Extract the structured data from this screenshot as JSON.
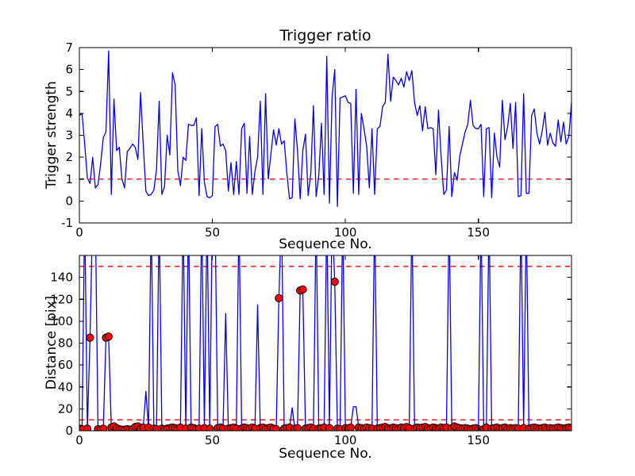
{
  "figure_title": "Trigger ratio",
  "chart_data": [
    {
      "type": "line",
      "title": "Trigger ratio",
      "xlabel": "Sequence No.",
      "ylabel": "Trigger strength",
      "xlim": [
        0,
        185
      ],
      "ylim": [
        -1,
        7
      ],
      "xticks": [
        0,
        50,
        100,
        150
      ],
      "yticks": [
        -1,
        0,
        1,
        2,
        3,
        4,
        5,
        6,
        7
      ],
      "grid": false,
      "legend": "none",
      "line_color": "#0000ff",
      "threshold_color": "#ff0000",
      "thresholds": [
        1
      ],
      "values": [
        3.9,
        4.0,
        2.6,
        1.05,
        0.8,
        2.0,
        0.6,
        0.75,
        1.7,
        2.9,
        3.15,
        6.85,
        0.3,
        4.65,
        2.3,
        2.45,
        1.0,
        0.6,
        2.25,
        2.4,
        2.6,
        2.45,
        1.9,
        4.95,
        2.6,
        0.45,
        0.25,
        0.3,
        0.5,
        1.45,
        4.55,
        0.3,
        0.65,
        3.0,
        2.1,
        5.85,
        5.3,
        1.4,
        0.7,
        2.0,
        1.85,
        3.5,
        3.45,
        3.45,
        3.8,
        0.25,
        3.3,
        0.85,
        0.2,
        0.15,
        0.25,
        3.4,
        3.5,
        2.5,
        2.6,
        2.3,
        0.45,
        1.75,
        0.3,
        1.8,
        0.3,
        3.3,
        3.55,
        0.35,
        2.95,
        0.3,
        1.35,
        2.0,
        4.55,
        0.3,
        4.9,
        1.0,
        2.15,
        3.25,
        2.55,
        3.3,
        2.6,
        2.75,
        1.25,
        0.1,
        0.15,
        3.75,
        2.3,
        0.1,
        2.3,
        3.05,
        0.25,
        1.25,
        4.35,
        0.2,
        1.15,
        3.55,
        0.3,
        6.6,
        -0.1,
        4.75,
        6.0,
        -0.25,
        4.7,
        4.75,
        4.8,
        4.5,
        4.45,
        0.35,
        5.1,
        0.3,
        4.0,
        3.3,
        2.5,
        0.6,
        3.3,
        0.3,
        3.3,
        3.4,
        4.3,
        4.5,
        6.7,
        4.55,
        5.65,
        5.5,
        5.3,
        5.6,
        5.2,
        5.9,
        5.5,
        5.95,
        4.5,
        3.9,
        4.35,
        3.2,
        4.3,
        3.3,
        3.35,
        3.3,
        1.2,
        4.15,
        2.0,
        0.3,
        0.5,
        3.4,
        0.2,
        1.3,
        0.95,
        2.05,
        2.6,
        3.15,
        3.5,
        4.6,
        3.45,
        3.3,
        3.3,
        3.5,
        0.2,
        3.3,
        3.35,
        0.15,
        3.1,
        2.0,
        1.55,
        4.6,
        2.8,
        3.4,
        4.45,
        2.4,
        4.5,
        0.2,
        0.25,
        4.9,
        0.35,
        0.35,
        3.9,
        4.2,
        3.1,
        2.6,
        3.2,
        4.05,
        2.55,
        3.1,
        2.65,
        2.5,
        3.7,
        2.7,
        3.6,
        2.6,
        2.95,
        4.5
      ]
    },
    {
      "type": "line",
      "title": "",
      "xlabel": "Sequence No.",
      "ylabel": "Distance [pix]",
      "xlim": [
        0,
        185
      ],
      "ylim": [
        0,
        160
      ],
      "xticks": [
        0,
        50,
        100,
        150
      ],
      "yticks": [
        0,
        20,
        40,
        60,
        80,
        100,
        120,
        140
      ],
      "grid": false,
      "legend": "none",
      "line_color": "#0000ff",
      "threshold_color": "#ff0000",
      "thresholds": [
        150,
        10
      ],
      "marker_color": "#ff0000",
      "marker_edge_color": "#000000",
      "clipped_spike_value": 200,
      "values": [
        2,
        1.5,
        200,
        2,
        85,
        200,
        200,
        1.5,
        1,
        2,
        85,
        86,
        3,
        4,
        2.5,
        1.5,
        1,
        1,
        1.5,
        1,
        1.5,
        3.5,
        4,
        2,
        3,
        36,
        3,
        200,
        2,
        1.5,
        200,
        2,
        1.5,
        2,
        2.5,
        3,
        2.5,
        2,
        3,
        200,
        2,
        200,
        3,
        2.5,
        1.5,
        2,
        200,
        2.5,
        200,
        2,
        200,
        200,
        2.5,
        3,
        2,
        107,
        2,
        2.5,
        3,
        2,
        200,
        2,
        3,
        2.5,
        2,
        3,
        2,
        115,
        2.5,
        3,
        2,
        2.5,
        3,
        2,
        1.5,
        121,
        200,
        2,
        2.5,
        3,
        21,
        2,
        2.5,
        128,
        129,
        2,
        2.5,
        3,
        2,
        200,
        2,
        2.5,
        3,
        200,
        2.5,
        200,
        136,
        2,
        1.5,
        200,
        2.5,
        2,
        3,
        22,
        22,
        3,
        2.5,
        2,
        3,
        2.5,
        2,
        200,
        2,
        2.5,
        3,
        3.5,
        2.5,
        2,
        3,
        2.5,
        2,
        3,
        2.5,
        3.5,
        2.5,
        200,
        2,
        3,
        2.5,
        3,
        3.5,
        2.5,
        2,
        3,
        2.5,
        2,
        3,
        2.5,
        3,
        200,
        2.5,
        4,
        3,
        2.5,
        2,
        2.5,
        2,
        1.5,
        2,
        2.5,
        1.5,
        200,
        1.5,
        3,
        200,
        2,
        2.5,
        3,
        2,
        2.5,
        3,
        2,
        2.5,
        2,
        2.5,
        2,
        200,
        2.5,
        200,
        2,
        2.5,
        3,
        2.5,
        2,
        2.5,
        3,
        2,
        2.5,
        2,
        2.5,
        3,
        2.5,
        2,
        2.5,
        3,
        2.5
      ],
      "marker_x": [
        0,
        1,
        3,
        4,
        7,
        8,
        9,
        10,
        11,
        12,
        13,
        14,
        15,
        16,
        17,
        18,
        19,
        20,
        21,
        22,
        23,
        24,
        26,
        28,
        29,
        31,
        32,
        33,
        34,
        35,
        36,
        37,
        38,
        40,
        42,
        43,
        44,
        45,
        47,
        49,
        52,
        53,
        54,
        56,
        57,
        58,
        59,
        61,
        62,
        63,
        64,
        65,
        66,
        68,
        69,
        70,
        71,
        72,
        73,
        74,
        75,
        77,
        78,
        79,
        81,
        82,
        83,
        84,
        85,
        86,
        87,
        88,
        90,
        91,
        92,
        94,
        96,
        97,
        98,
        100,
        101,
        102,
        105,
        106,
        107,
        108,
        109,
        110,
        112,
        113,
        114,
        115,
        116,
        117,
        118,
        119,
        120,
        121,
        122,
        123,
        124,
        126,
        127,
        128,
        129,
        130,
        131,
        132,
        133,
        134,
        135,
        136,
        137,
        138,
        140,
        141,
        142,
        143,
        144,
        145,
        146,
        147,
        148,
        149,
        150,
        152,
        153,
        155,
        156,
        157,
        158,
        159,
        160,
        161,
        162,
        163,
        164,
        165,
        167,
        169,
        170,
        171,
        172,
        173,
        174,
        175,
        176,
        177,
        178,
        179,
        180,
        181,
        182,
        183,
        184,
        185
      ]
    }
  ]
}
